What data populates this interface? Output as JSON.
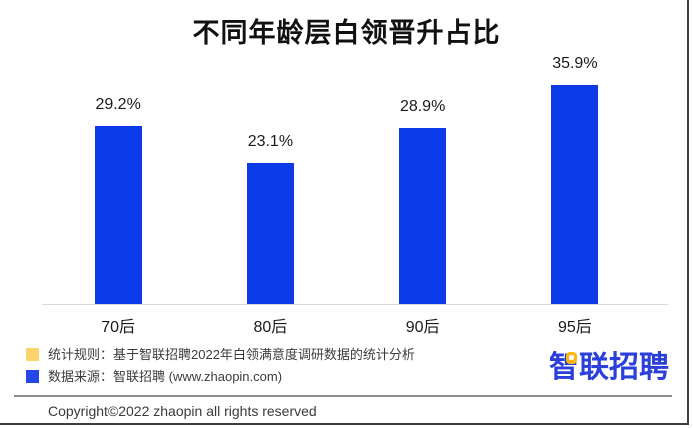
{
  "title": "不同年龄层白领晋升占比",
  "chart_data": {
    "type": "bar",
    "title": "不同年龄层白领晋升占比",
    "categories": [
      "70后",
      "80后",
      "90后",
      "95后"
    ],
    "values": [
      29.2,
      23.1,
      28.9,
      35.9
    ],
    "value_labels": [
      "29.2%",
      "23.1%",
      "28.9%",
      "35.9%"
    ],
    "xlabel": "",
    "ylabel": "",
    "ylim": [
      0,
      40
    ],
    "grid": false,
    "legend_position": "bottom-left",
    "bar_color": "#0B3BE8",
    "axis_line_color": "#D9D9D9"
  },
  "legend": {
    "items": [
      {
        "swatch_color": "#FBD46B",
        "label": "统计规则：基于智联招聘2022年白领满意度调研数据的统计分析"
      },
      {
        "swatch_color": "#2347E9",
        "label": "数据来源：智联招聘 (www.zhaopin.com)"
      }
    ]
  },
  "logo": {
    "text": "智联招聘",
    "color": "#2B3FDB",
    "accent_color": "#FFB612"
  },
  "footer": {
    "copyright": "Copyright©2022 zhaopin all rights reserved"
  }
}
